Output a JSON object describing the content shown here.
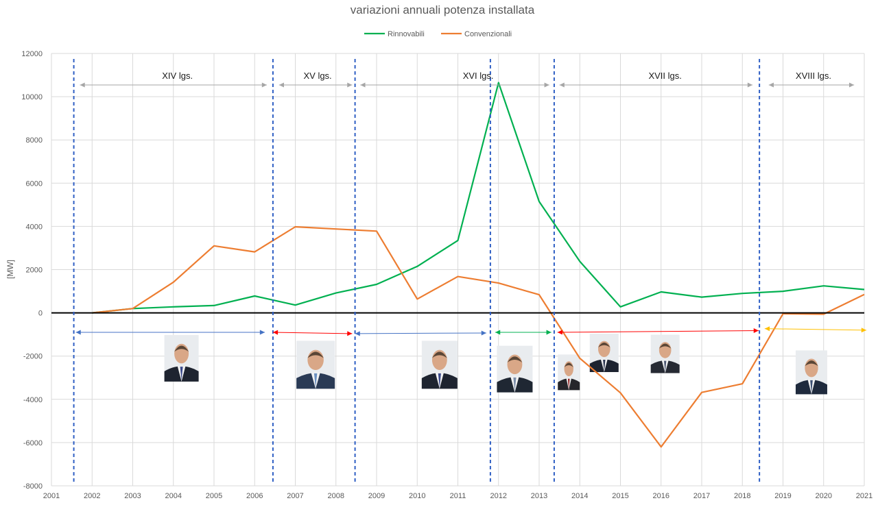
{
  "chart_data": {
    "type": "line",
    "title": "variazioni annuali potenza installata",
    "ylabel": "[MW]",
    "xlabel": "",
    "xlim": [
      2001,
      2021
    ],
    "ylim": [
      -8000,
      12000
    ],
    "y_ticks": [
      -8000,
      -6000,
      -4000,
      -2000,
      0,
      2000,
      4000,
      6000,
      8000,
      10000,
      12000
    ],
    "x_ticks": [
      2001,
      2002,
      2003,
      2004,
      2005,
      2006,
      2007,
      2008,
      2009,
      2010,
      2011,
      2012,
      2013,
      2014,
      2015,
      2016,
      2017,
      2018,
      2019,
      2020,
      2021
    ],
    "grid": true,
    "legend_position": "top-center",
    "series": [
      {
        "name": "Rinnovabili",
        "color": "#00b050",
        "x": [
          2002,
          2003,
          2004,
          2005,
          2006,
          2007,
          2008,
          2009,
          2010,
          2011,
          2012,
          2013,
          2014,
          2015,
          2016,
          2017,
          2018,
          2019,
          2020,
          2021
        ],
        "values": [
          0,
          200,
          280,
          340,
          780,
          360,
          920,
          1320,
          2150,
          3350,
          10650,
          5150,
          2380,
          280,
          970,
          730,
          900,
          1000,
          1250,
          1080
        ]
      },
      {
        "name": "Convenzionali",
        "color": "#ed7d31",
        "x": [
          2002,
          2003,
          2004,
          2005,
          2006,
          2007,
          2008,
          2009,
          2010,
          2011,
          2012,
          2013,
          2014,
          2015,
          2016,
          2017,
          2018,
          2019,
          2020,
          2021
        ],
        "values": [
          0,
          200,
          1420,
          3100,
          2820,
          3980,
          3880,
          3780,
          640,
          1680,
          1380,
          840,
          -2100,
          -3700,
          -6200,
          -3680,
          -3280,
          -40,
          -60,
          850
        ]
      }
    ],
    "annotations": {
      "legislature_boundaries": [
        2001.55,
        2006.45,
        2008.47,
        2011.8,
        2013.37,
        2018.42
      ],
      "legislatures": [
        {
          "label": "XIV lgs.",
          "x_from": 2001.7,
          "x_to": 2006.3,
          "label_x": 2004.1
        },
        {
          "label": "XV lgs.",
          "x_from": 2006.6,
          "x_to": 2008.4,
          "label_x": 2007.55
        },
        {
          "label": "XVI lgs.",
          "x_from": 2008.6,
          "x_to": 2013.25,
          "label_x": 2011.5
        },
        {
          "label": "XVII lgs.",
          "x_from": 2013.5,
          "x_to": 2018.25,
          "label_x": 2016.1
        },
        {
          "label": "XVIII lgs.",
          "x_from": 2018.65,
          "x_to": 2020.75,
          "label_x": 2019.75
        }
      ],
      "government_arrows": [
        {
          "x_from": 2001.6,
          "y_from": -900,
          "x_to": 2006.25,
          "y_to": -900,
          "color": "#4472c4"
        },
        {
          "x_from": 2006.45,
          "y_from": -900,
          "x_to": 2008.4,
          "y_to": -960,
          "color": "#ff0000"
        },
        {
          "x_from": 2008.47,
          "y_from": -960,
          "x_to": 2011.7,
          "y_to": -930,
          "color": "#4472c4"
        },
        {
          "x_from": 2011.92,
          "y_from": -900,
          "x_to": 2013.3,
          "y_to": -900,
          "color": "#00b050"
        },
        {
          "x_from": 2013.45,
          "y_from": -900,
          "x_to": 2018.4,
          "y_to": -820,
          "color": "#ff0000"
        },
        {
          "x_from": 2018.55,
          "y_from": -730,
          "x_to": 2021.05,
          "y_to": -800,
          "color": "#ffc000"
        }
      ],
      "portraits": [
        {
          "name": "berlusconi-portrait",
          "x": 2004.2,
          "y": -2100,
          "w": 50,
          "h": 68,
          "suit": "#1e2430",
          "tie": "#3b4a8c"
        },
        {
          "name": "prodi-portrait",
          "x": 2007.5,
          "y": -2400,
          "w": 56,
          "h": 70,
          "suit": "#2a3a55",
          "tie": "#6a8fbf"
        },
        {
          "name": "berlusconi-portrait-2",
          "x": 2010.55,
          "y": -2400,
          "w": 52,
          "h": 70,
          "suit": "#1e2430",
          "tie": "#3b4a8c"
        },
        {
          "name": "monti-portrait",
          "x": 2012.4,
          "y": -2600,
          "w": 52,
          "h": 68,
          "suit": "#1f2733",
          "tie": "#7a8ca8"
        },
        {
          "name": "letta-portrait",
          "x": 2013.73,
          "y": -2750,
          "w": 32,
          "h": 52,
          "suit": "#25262b",
          "tie": "#8c1c1c"
        },
        {
          "name": "renzi-portrait",
          "x": 2014.6,
          "y": -1850,
          "w": 42,
          "h": 56,
          "suit": "#1d2330",
          "tie": "#2b3550"
        },
        {
          "name": "gentiloni-portrait",
          "x": 2016.1,
          "y": -1900,
          "w": 42,
          "h": 56,
          "suit": "#262a33",
          "tie": "#4b5670"
        },
        {
          "name": "conte-portrait",
          "x": 2019.7,
          "y": -2750,
          "w": 46,
          "h": 64,
          "suit": "#1f2a3d",
          "tie": "#3c4f73"
        }
      ]
    }
  }
}
